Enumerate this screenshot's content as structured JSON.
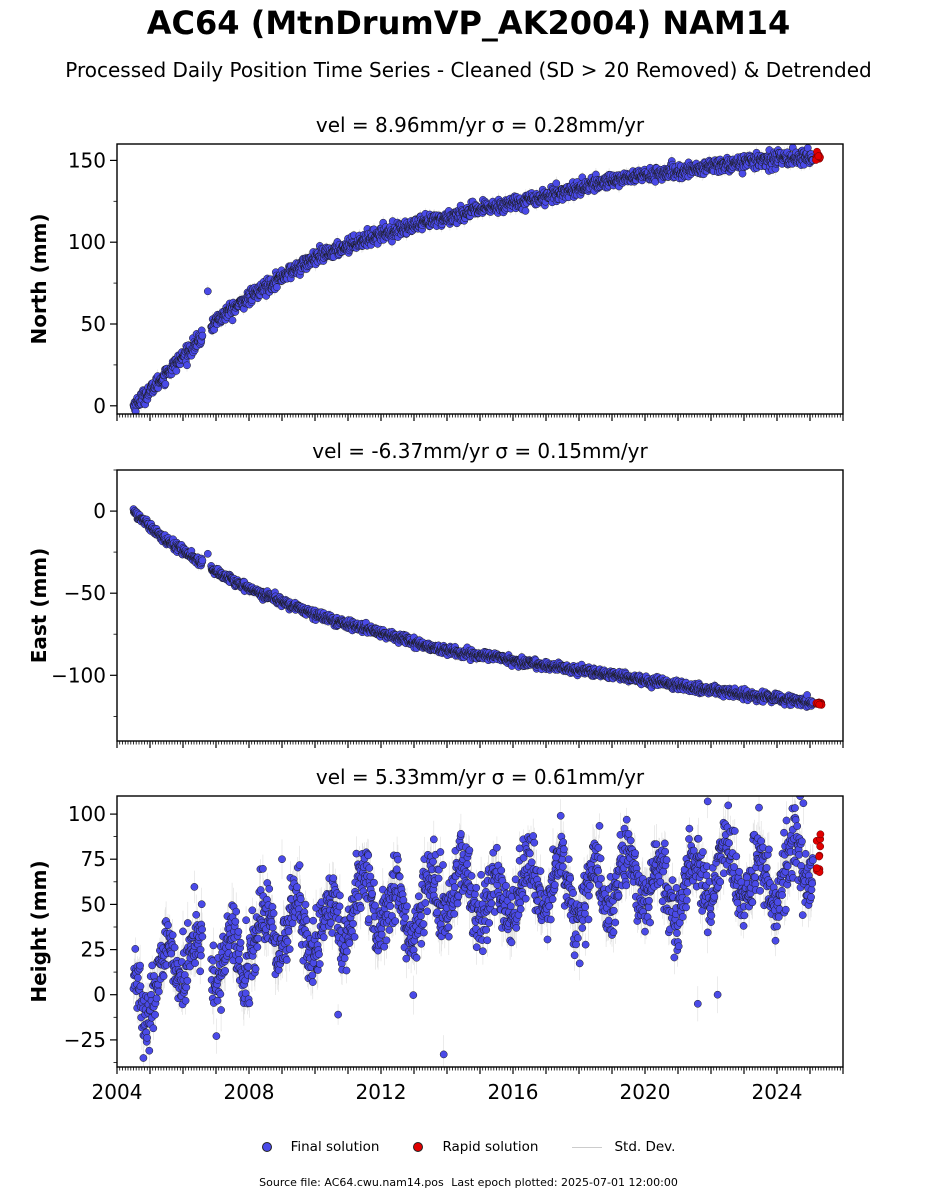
{
  "title": "AC64 (MtnDrumVP_AK2004) NAM14",
  "subtitle": "Processed Daily Position Time Series - Cleaned (SD > 20 Removed) & Detrended",
  "colors": {
    "final": "#4a4ae8",
    "rapid": "#e00000",
    "stddev": "#c8c8c8",
    "marker_edge": "#1a1a1a"
  },
  "legend": {
    "final": "Final solution",
    "rapid": "Rapid solution",
    "stddev": "Std. Dev."
  },
  "footer": {
    "source": "Source file: AC64.cwu.nam14.pos",
    "last_epoch": "Last epoch plotted: 2025-07-01 12:00:00"
  },
  "chart_data": [
    {
      "type": "scatter",
      "title": "vel = 8.96mm/yr   σ = 0.28mm/yr",
      "ylabel": "North (mm)",
      "xlim": [
        2004.0,
        2026.0
      ],
      "ylim": [
        -5,
        160
      ],
      "yticks": [
        0,
        50,
        100,
        150
      ],
      "xticks": [
        2004,
        2008,
        2012,
        2016,
        2020,
        2024
      ],
      "show_xticklabels": false,
      "grid": false,
      "trend_points": [
        [
          2004.5,
          0
        ],
        [
          2005.0,
          9
        ],
        [
          2005.5,
          20
        ],
        [
          2006.0,
          30
        ],
        [
          2006.5,
          40
        ],
        [
          2007.0,
          52
        ],
        [
          2008.0,
          66
        ],
        [
          2009.0,
          79
        ],
        [
          2010.0,
          90
        ],
        [
          2011.0,
          98
        ],
        [
          2012.0,
          105
        ],
        [
          2013.0,
          110
        ],
        [
          2014.0,
          115
        ],
        [
          2015.0,
          120
        ],
        [
          2016.0,
          124
        ],
        [
          2017.0,
          128
        ],
        [
          2018.0,
          133
        ],
        [
          2019.0,
          138
        ],
        [
          2020.0,
          141
        ],
        [
          2021.0,
          143
        ],
        [
          2022.0,
          146
        ],
        [
          2023.0,
          149
        ],
        [
          2024.0,
          151
        ],
        [
          2025.3,
          152
        ]
      ],
      "gaps": [
        [
          2006.6,
          2006.85
        ]
      ],
      "outliers": [
        [
          2006.75,
          70
        ]
      ],
      "scatter": 2.2,
      "errorbar": 3,
      "series": [
        {
          "name": "Final solution",
          "x_range": [
            2004.5,
            2025.1
          ]
        },
        {
          "name": "Rapid solution",
          "x_range": [
            2025.15,
            2025.35
          ]
        }
      ]
    },
    {
      "type": "scatter",
      "title": "vel = -6.37mm/yr   σ = 0.15mm/yr",
      "ylabel": "East (mm)",
      "xlim": [
        2004.0,
        2026.0
      ],
      "ylim": [
        -140,
        25
      ],
      "yticks": [
        -100,
        -50,
        0
      ],
      "xticks": [
        2004,
        2008,
        2012,
        2016,
        2020,
        2024
      ],
      "show_xticklabels": false,
      "grid": false,
      "trend_points": [
        [
          2004.5,
          0
        ],
        [
          2005.0,
          -10
        ],
        [
          2005.5,
          -18
        ],
        [
          2006.0,
          -24
        ],
        [
          2006.5,
          -31
        ],
        [
          2007.0,
          -37
        ],
        [
          2008.0,
          -47
        ],
        [
          2009.0,
          -55
        ],
        [
          2010.0,
          -63
        ],
        [
          2011.0,
          -69
        ],
        [
          2012.0,
          -74
        ],
        [
          2013.0,
          -80
        ],
        [
          2014.0,
          -85
        ],
        [
          2015.0,
          -88
        ],
        [
          2016.0,
          -91
        ],
        [
          2017.0,
          -94
        ],
        [
          2018.0,
          -97
        ],
        [
          2019.0,
          -100
        ],
        [
          2020.0,
          -103
        ],
        [
          2021.0,
          -106
        ],
        [
          2022.0,
          -109
        ],
        [
          2023.0,
          -112
        ],
        [
          2024.0,
          -114
        ],
        [
          2025.3,
          -117
        ]
      ],
      "gaps": [
        [
          2006.6,
          2006.85
        ]
      ],
      "outliers": [
        [
          2006.75,
          -26
        ]
      ],
      "scatter": 1.3,
      "errorbar": 2.5,
      "series": [
        {
          "name": "Final solution",
          "x_range": [
            2004.5,
            2025.1
          ]
        },
        {
          "name": "Rapid solution",
          "x_range": [
            2025.15,
            2025.35
          ]
        }
      ]
    },
    {
      "type": "scatter",
      "title": "vel = 5.33mm/yr   σ = 0.61mm/yr",
      "ylabel": "Height (mm)",
      "xlim": [
        2004.0,
        2026.0
      ],
      "ylim": [
        -40,
        110
      ],
      "yticks": [
        -25,
        0,
        25,
        50,
        75,
        100
      ],
      "xticks": [
        2004,
        2008,
        2012,
        2016,
        2020,
        2024
      ],
      "xticklabels": [
        "2004",
        "2008",
        "2012",
        "2016",
        "2020",
        "2024"
      ],
      "show_xticklabels": true,
      "grid": false,
      "trend_points": [
        [
          2004.5,
          5
        ],
        [
          2006.0,
          15
        ],
        [
          2008.0,
          28
        ],
        [
          2010.0,
          40
        ],
        [
          2012.0,
          48
        ],
        [
          2014.0,
          52
        ],
        [
          2016.0,
          56
        ],
        [
          2018.0,
          60
        ],
        [
          2020.0,
          62
        ],
        [
          2022.0,
          64
        ],
        [
          2024.0,
          68
        ],
        [
          2025.3,
          72
        ]
      ],
      "gaps": [
        [
          2006.6,
          2006.85
        ]
      ],
      "seasonal_amplitude": 14,
      "scatter": 9,
      "errorbar": 9,
      "outliers": [
        [
          2004.8,
          -35
        ],
        [
          2013.9,
          -33
        ],
        [
          2013.8,
          79
        ],
        [
          2013.6,
          86
        ],
        [
          2021.9,
          107
        ],
        [
          2024.8,
          106
        ],
        [
          2016.2,
          81
        ],
        [
          2017.3,
          76
        ],
        [
          2009.0,
          75
        ],
        [
          2010.7,
          -11
        ],
        [
          2021.6,
          -5
        ],
        [
          2022.2,
          0
        ]
      ],
      "series": [
        {
          "name": "Final solution",
          "x_range": [
            2004.5,
            2025.1
          ]
        },
        {
          "name": "Rapid solution",
          "x_range": [
            2025.15,
            2025.35
          ]
        }
      ]
    }
  ]
}
